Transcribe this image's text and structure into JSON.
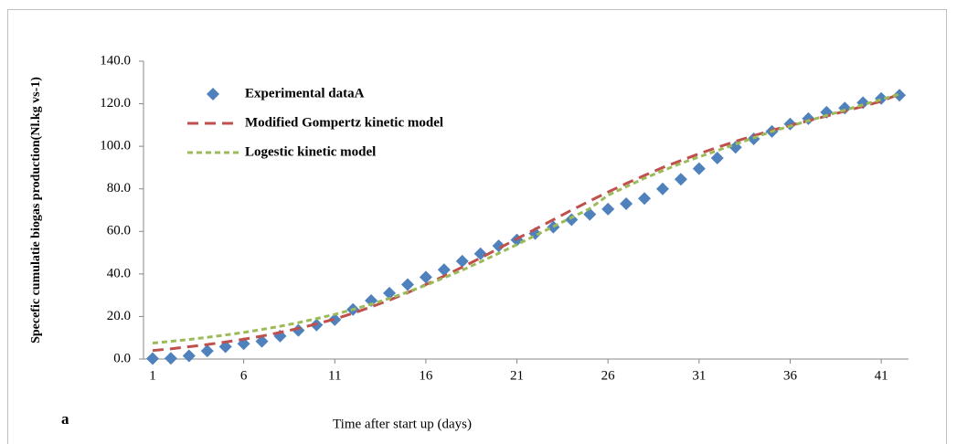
{
  "chart_data": {
    "type": "line",
    "y_label": "Specefic cumulatie biogas production(Nl.kg  vs-1)",
    "x_label": "Time after start up (days)",
    "annotation": "a",
    "x": [
      1,
      2,
      3,
      4,
      5,
      6,
      7,
      8,
      9,
      10,
      11,
      12,
      13,
      14,
      15,
      16,
      17,
      18,
      19,
      20,
      21,
      22,
      23,
      24,
      25,
      26,
      27,
      28,
      29,
      30,
      31,
      32,
      33,
      34,
      35,
      36,
      37,
      38,
      39,
      40,
      41,
      42
    ],
    "xlim": [
      0.5,
      42.5
    ],
    "xticks": [
      1,
      6,
      11,
      16,
      21,
      26,
      31,
      36,
      41
    ],
    "ylim": [
      0,
      140
    ],
    "yticks": [
      {
        "value": 0,
        "label": "0.0"
      },
      {
        "value": 20,
        "label": "20.0"
      },
      {
        "value": 40,
        "label": "40.0"
      },
      {
        "value": 60,
        "label": "60.0"
      },
      {
        "value": 80,
        "label": "80.0"
      },
      {
        "value": 100,
        "label": "100.0"
      },
      {
        "value": 120,
        "label": "120.0"
      },
      {
        "value": 140,
        "label": "140.0"
      }
    ],
    "legend": "top-left",
    "series": [
      {
        "name": "Experimental dataA",
        "style": "markers",
        "color": "#4f81bd",
        "values": [
          0.2,
          0.3,
          1.5,
          3.8,
          5.8,
          7.2,
          8.3,
          10.8,
          13.5,
          16,
          18.5,
          23.3,
          27.5,
          31,
          35,
          38.5,
          42,
          46,
          49.5,
          53.2,
          56,
          59,
          62,
          65.5,
          68,
          70.5,
          73,
          75.5,
          80,
          84.5,
          89.5,
          94.5,
          99.5,
          103.5,
          107,
          110.5,
          113,
          116,
          118,
          120.5,
          122.5,
          124
        ]
      },
      {
        "name": "Modified Gompertz kinetic model",
        "style": "long-dash",
        "color": "#c0504d",
        "values": [
          4,
          4.8,
          5.8,
          6.8,
          8,
          9.3,
          10.8,
          12.5,
          14.4,
          16.5,
          18.8,
          21.5,
          24.5,
          27.7,
          31.2,
          35,
          39,
          43.2,
          47.5,
          52,
          56.5,
          61,
          65.5,
          70,
          74.3,
          78.5,
          82.5,
          86.3,
          90,
          93.3,
          96.5,
          99.5,
          102.3,
          105,
          107.5,
          109.8,
          112,
          114.2,
          116.5,
          118.8,
          121.2,
          124.5
        ]
      },
      {
        "name": "Logestic kinetic model",
        "style": "short-dash",
        "color": "#9bbb59",
        "values": [
          7.5,
          8.3,
          9.2,
          10.2,
          11.3,
          12.5,
          13.9,
          15.4,
          17.1,
          19,
          21,
          23.3,
          25.8,
          28.5,
          31.5,
          34.7,
          38.2,
          41.8,
          45.7,
          49.7,
          53.8,
          58,
          62.3,
          66.5,
          70.7,
          77,
          81,
          85,
          88.5,
          92,
          95,
          98,
          101,
          104,
          107,
          109.5,
          112,
          114.5,
          117,
          119.5,
          122,
          124.5
        ]
      }
    ]
  }
}
